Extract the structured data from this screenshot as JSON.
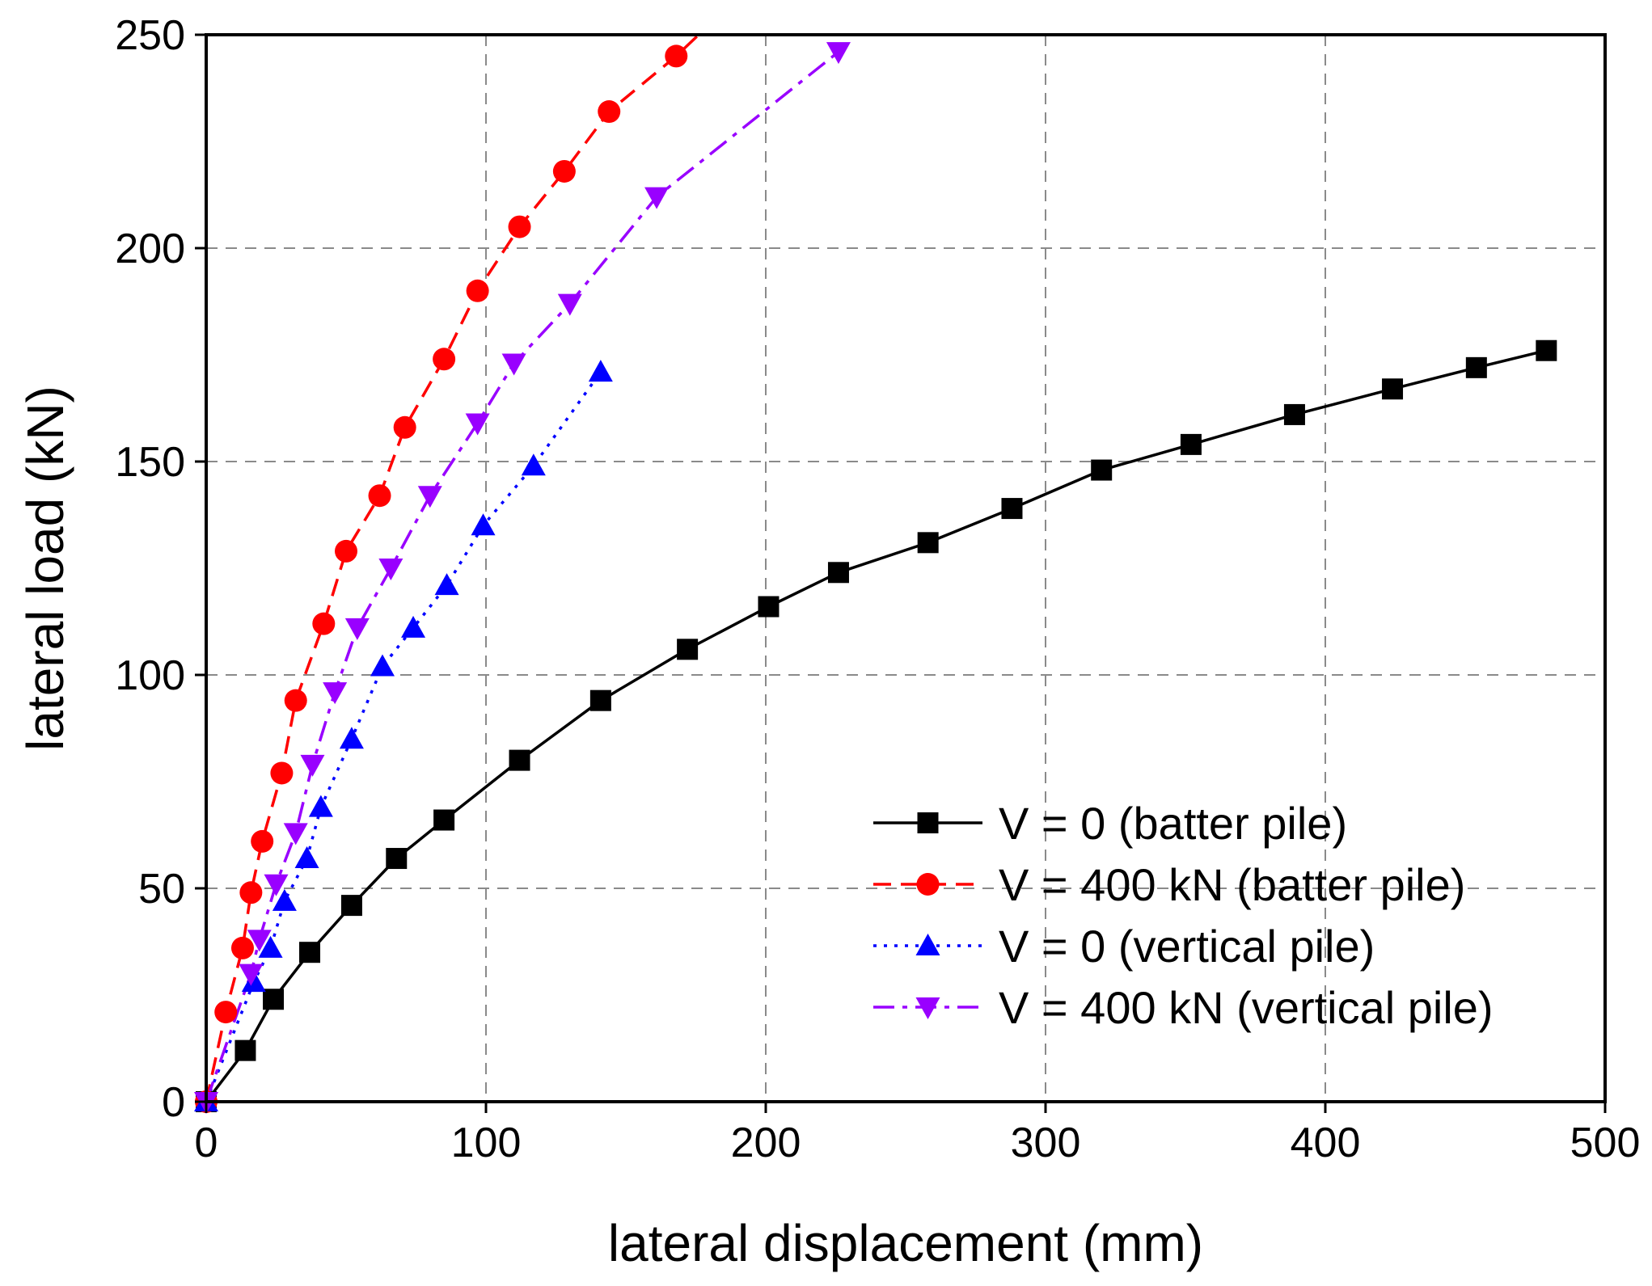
{
  "chart_data": {
    "type": "line",
    "title": "",
    "xlabel": "lateral displacement (mm)",
    "ylabel": "lateral load (kN)",
    "xlim": [
      0,
      500
    ],
    "ylim": [
      0,
      250
    ],
    "xticks": [
      0,
      100,
      200,
      300,
      400,
      500
    ],
    "yticks": [
      0,
      50,
      100,
      150,
      200,
      250
    ],
    "grid": true,
    "legend_position": "bottom-right",
    "series": [
      {
        "name": "V = 0 (batter pile)",
        "color": "#000000",
        "line_style": "solid",
        "marker": "square",
        "x": [
          0,
          14,
          24,
          37,
          52,
          68,
          85,
          112,
          141,
          172,
          201,
          226,
          258,
          288,
          320,
          352,
          389,
          424,
          454,
          479
        ],
        "y": [
          0,
          12,
          24,
          35,
          46,
          57,
          66,
          80,
          94,
          106,
          116,
          124,
          131,
          139,
          148,
          154,
          161,
          167,
          172,
          176
        ]
      },
      {
        "name": "V = 400 kN (batter pile)",
        "color": "#ff0000",
        "line_style": "dashed",
        "marker": "circle",
        "x": [
          0,
          7,
          13,
          16,
          20,
          27,
          32,
          42,
          50,
          62,
          71,
          85,
          97,
          112,
          128,
          144,
          168,
          176
        ],
        "y": [
          0,
          21,
          36,
          49,
          61,
          77,
          94,
          112,
          129,
          142,
          158,
          174,
          190,
          205,
          218,
          232,
          245,
          250
        ],
        "markers_last_omitted": true
      },
      {
        "name": "V = 0 (vertical pile)",
        "color": "#0000ff",
        "line_style": "dotted",
        "marker": "triangle-up",
        "x": [
          0,
          17,
          23,
          28,
          36,
          41,
          52,
          63,
          74,
          86,
          99,
          117,
          141
        ],
        "y": [
          0,
          28,
          36,
          47,
          57,
          69,
          85,
          102,
          111,
          121,
          135,
          149,
          171
        ]
      },
      {
        "name": "V = 400 kN (vertical pile)",
        "color": "#9900ff",
        "line_style": "dashdot",
        "marker": "triangle-down",
        "x": [
          0,
          16,
          19,
          25,
          32,
          38,
          46,
          54,
          66,
          80,
          97,
          110,
          130,
          161,
          226
        ],
        "y": [
          0,
          30,
          38,
          51,
          63,
          79,
          96,
          111,
          125,
          142,
          159,
          173,
          187,
          212,
          246
        ]
      }
    ]
  }
}
